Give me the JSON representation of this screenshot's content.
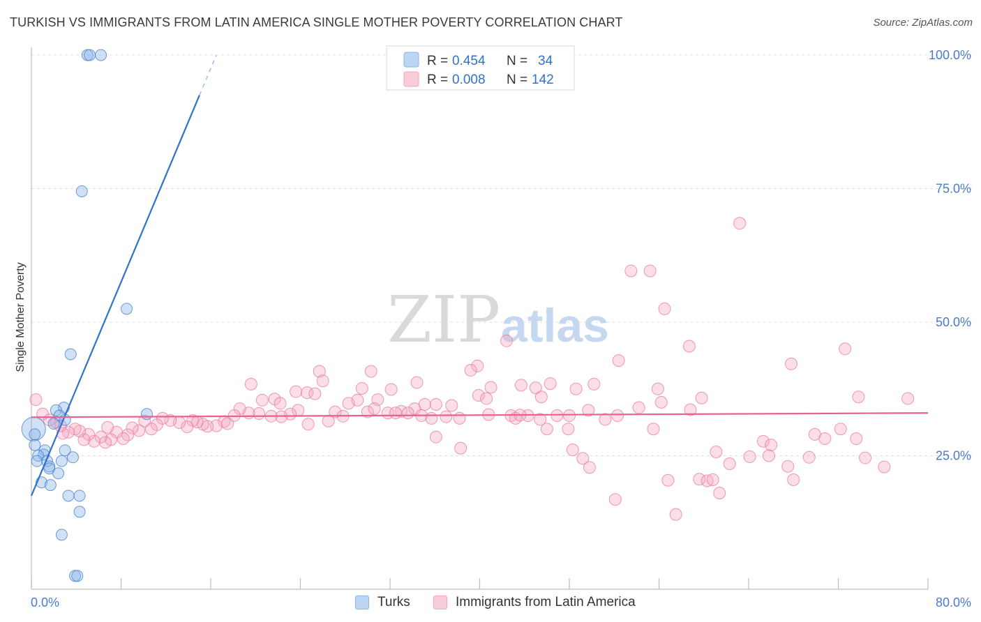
{
  "title": "TURKISH VS IMMIGRANTS FROM LATIN AMERICA SINGLE MOTHER POVERTY CORRELATION CHART",
  "source": "Source: ZipAtlas.com",
  "watermark": {
    "zip": "ZIP",
    "atlas": "atlas"
  },
  "colors": {
    "turks": "#8ab4e8",
    "turks_line": "#2f72c9",
    "latam": "#f4a7c0",
    "latam_line": "#e8628e",
    "axis_text": "#4a7cc7"
  },
  "legend_top": {
    "rows": [
      {
        "r_label": "R =",
        "r_value": "0.454",
        "n_label": "N =",
        "n_value": "34"
      },
      {
        "r_label": "R =",
        "r_value": "0.008",
        "n_label": "N =",
        "n_value": "142"
      }
    ]
  },
  "legend_bottom": [
    "Turks",
    "Immigrants from Latin America"
  ],
  "chart_data": {
    "type": "scatter",
    "title": "TURKISH VS IMMIGRANTS FROM LATIN AMERICA SINGLE MOTHER POVERTY CORRELATION CHART",
    "xlabel": "",
    "ylabel": "Single Mother Poverty",
    "xlim": [
      0,
      80
    ],
    "ylim": [
      0,
      100
    ],
    "x_tick_labels": [
      "0.0%",
      "80.0%"
    ],
    "y_tick_labels": [
      "25.0%",
      "50.0%",
      "75.0%",
      "100.0%"
    ],
    "y_ticks": [
      25,
      50,
      75,
      100
    ],
    "grid": true,
    "legend_position": "top-center",
    "series": [
      {
        "name": "Turks",
        "r": 0.454,
        "n": 34,
        "trend": {
          "x0": 0,
          "y0": 17.5,
          "x1": 15,
          "y1": 92.5,
          "dash_to_x": 16.5,
          "dash_to_y": 100
        },
        "points": [
          [
            5.0,
            100
          ],
          [
            5.2,
            100
          ],
          [
            6.2,
            100
          ],
          [
            4.5,
            74.5
          ],
          [
            8.5,
            52.5
          ],
          [
            3.5,
            44
          ],
          [
            10.3,
            32.8
          ],
          [
            2.9,
            34
          ],
          [
            2.2,
            33.5
          ],
          [
            2.5,
            32.5
          ],
          [
            3.0,
            31.7
          ],
          [
            2.0,
            31.0
          ],
          [
            0.2,
            30.0
          ],
          [
            0.3,
            29
          ],
          [
            0.3,
            27.0
          ],
          [
            1.2,
            26.0
          ],
          [
            1.1,
            25.2
          ],
          [
            0.6,
            25.0
          ],
          [
            0.5,
            24.0
          ],
          [
            1.4,
            24.0
          ],
          [
            1.6,
            23.0
          ],
          [
            3.7,
            24.7
          ],
          [
            2.7,
            24.0
          ],
          [
            3.0,
            26.0
          ],
          [
            1.6,
            22.6
          ],
          [
            2.4,
            21.7
          ],
          [
            0.9,
            20.0
          ],
          [
            1.7,
            19.5
          ],
          [
            3.3,
            17.5
          ],
          [
            4.3,
            17.5
          ],
          [
            4.3,
            14.5
          ],
          [
            2.7,
            10.2
          ],
          [
            3.9,
            2.5
          ],
          [
            4.1,
            2.5
          ]
        ]
      },
      {
        "name": "Immigrants from Latin America",
        "r": 0.008,
        "n": 142,
        "trend": {
          "x0": 0,
          "y0": 32.2,
          "x1": 80,
          "y1": 33.0
        },
        "points": [
          [
            63.2,
            68.5
          ],
          [
            53.5,
            59.6
          ],
          [
            55.2,
            59.6
          ],
          [
            56.5,
            52.5
          ],
          [
            42.4,
            46.5
          ],
          [
            58.7,
            45.5
          ],
          [
            72.6,
            45.0
          ],
          [
            52.4,
            42.8
          ],
          [
            67.8,
            42.2
          ],
          [
            39.8,
            41.8
          ],
          [
            25.7,
            40.8
          ],
          [
            30.3,
            40.8
          ],
          [
            39.2,
            41.0
          ],
          [
            43.7,
            38.2
          ],
          [
            50.2,
            38.4
          ],
          [
            46.3,
            38.5
          ],
          [
            41.0,
            37.8
          ],
          [
            45.0,
            37.7
          ],
          [
            48.6,
            37.5
          ],
          [
            29.5,
            37.6
          ],
          [
            34.4,
            38.7
          ],
          [
            26.0,
            39.0
          ],
          [
            19.6,
            38.4
          ],
          [
            23.6,
            37.0
          ],
          [
            24.6,
            36.8
          ],
          [
            25.3,
            36.6
          ],
          [
            32.1,
            37.4
          ],
          [
            30.9,
            35.5
          ],
          [
            29.1,
            35.4
          ],
          [
            39.9,
            36.3
          ],
          [
            40.6,
            35.7
          ],
          [
            45.5,
            36.0
          ],
          [
            54.2,
            34.0
          ],
          [
            55.9,
            37.5
          ],
          [
            56.2,
            35.0
          ],
          [
            58.8,
            33.6
          ],
          [
            59.8,
            35.8
          ],
          [
            73.8,
            36.0
          ],
          [
            78.2,
            35.7
          ],
          [
            28.3,
            34.8
          ],
          [
            20.6,
            35.4
          ],
          [
            21.7,
            35.6
          ],
          [
            22.2,
            34.8
          ],
          [
            36.1,
            34.6
          ],
          [
            37.5,
            34.4
          ],
          [
            34.2,
            33.8
          ],
          [
            35.1,
            34.6
          ],
          [
            33.0,
            33.3
          ],
          [
            33.6,
            33.0
          ],
          [
            37.0,
            32.3
          ],
          [
            38.2,
            32.0
          ],
          [
            40.8,
            32.7
          ],
          [
            42.8,
            32.5
          ],
          [
            43.2,
            32.0
          ],
          [
            44.3,
            32.5
          ],
          [
            46.0,
            30.0
          ],
          [
            46.9,
            32.5
          ],
          [
            48.0,
            32.5
          ],
          [
            49.7,
            33.5
          ],
          [
            51.2,
            31.8
          ],
          [
            52.3,
            32.5
          ],
          [
            30.0,
            33.2
          ],
          [
            30.6,
            33.8
          ],
          [
            31.8,
            33.0
          ],
          [
            32.5,
            33.0
          ],
          [
            34.8,
            32.5
          ],
          [
            35.7,
            32.0
          ],
          [
            27.1,
            33.2
          ],
          [
            27.8,
            32.4
          ],
          [
            23.8,
            33.5
          ],
          [
            23.1,
            32.8
          ],
          [
            22.3,
            32.3
          ],
          [
            21.4,
            32.4
          ],
          [
            20.3,
            32.9
          ],
          [
            19.4,
            33.0
          ],
          [
            18.6,
            33.8
          ],
          [
            18.1,
            32.5
          ],
          [
            17.2,
            31.4
          ],
          [
            16.5,
            30.6
          ],
          [
            15.7,
            30.5
          ],
          [
            15.3,
            30.9
          ],
          [
            14.8,
            31.3
          ],
          [
            14.4,
            31.6
          ],
          [
            13.9,
            30.4
          ],
          [
            13.2,
            31.2
          ],
          [
            12.4,
            31.6
          ],
          [
            11.7,
            32.0
          ],
          [
            11.2,
            30.8
          ],
          [
            10.7,
            30.0
          ],
          [
            10.1,
            31.5
          ],
          [
            9.6,
            29.7
          ],
          [
            9.0,
            30.2
          ],
          [
            8.6,
            28.9
          ],
          [
            8.2,
            28.2
          ],
          [
            7.6,
            29.4
          ],
          [
            7.1,
            28.0
          ],
          [
            6.6,
            27.5
          ],
          [
            6.2,
            28.5
          ],
          [
            5.6,
            27.7
          ],
          [
            5.1,
            29.0
          ],
          [
            4.7,
            28.0
          ],
          [
            4.3,
            29.6
          ],
          [
            3.9,
            30.0
          ],
          [
            3.3,
            29.4
          ],
          [
            2.8,
            29.2
          ],
          [
            2.2,
            31.3
          ],
          [
            1.6,
            31.7
          ],
          [
            1.0,
            32.8
          ],
          [
            0.4,
            35.5
          ],
          [
            2.6,
            30.6
          ],
          [
            6.8,
            30.3
          ],
          [
            17.5,
            31.0
          ],
          [
            24.7,
            30.9
          ],
          [
            26.5,
            31.5
          ],
          [
            36.1,
            28.5
          ],
          [
            38.3,
            26.4
          ],
          [
            43.6,
            32.6
          ],
          [
            45.4,
            31.8
          ],
          [
            47.9,
            30.0
          ],
          [
            48.3,
            26.1
          ],
          [
            49.2,
            24.5
          ],
          [
            49.8,
            22.8
          ],
          [
            52.1,
            16.8
          ],
          [
            56.8,
            20.4
          ],
          [
            57.5,
            14.0
          ],
          [
            59.6,
            20.6
          ],
          [
            60.3,
            20.3
          ],
          [
            60.8,
            20.5
          ],
          [
            61.4,
            18.0
          ],
          [
            61.1,
            25.7
          ],
          [
            62.3,
            23.5
          ],
          [
            64.1,
            24.8
          ],
          [
            65.3,
            27.7
          ],
          [
            66.0,
            27.0
          ],
          [
            65.8,
            25.0
          ],
          [
            67.5,
            23.0
          ],
          [
            68.0,
            20.5
          ],
          [
            69.4,
            24.7
          ],
          [
            69.9,
            29.0
          ],
          [
            70.8,
            28.2
          ],
          [
            72.2,
            30.0
          ],
          [
            73.6,
            28.2
          ],
          [
            74.4,
            24.6
          ],
          [
            76.1,
            22.9
          ],
          [
            55.5,
            30.0
          ]
        ]
      }
    ]
  }
}
